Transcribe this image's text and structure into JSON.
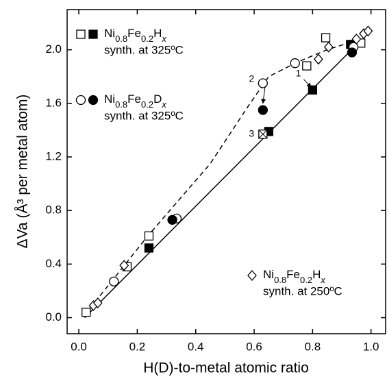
{
  "chart_data": {
    "type": "scatter",
    "x_label": "H(D)-to-metal atomic ratio",
    "y_label": "ΔVa (Å³ per metal atom)",
    "xlim": [
      -0.04,
      1.05
    ],
    "ylim": [
      -0.12,
      2.3
    ],
    "xticks": [
      {
        "value": 0,
        "label": "0.0"
      },
      {
        "value": 0.2,
        "label": "0.2"
      },
      {
        "value": 0.4,
        "label": "0.4"
      },
      {
        "value": 0.6,
        "label": "0.6"
      },
      {
        "value": 0.8,
        "label": "0.8"
      },
      {
        "value": 1,
        "label": "1.0"
      }
    ],
    "yticks": [
      {
        "value": 0,
        "label": "0.0"
      },
      {
        "value": 0.4,
        "label": "0.4"
      },
      {
        "value": 0.8,
        "label": "0.8"
      },
      {
        "value": 1.2,
        "label": "1.2"
      },
      {
        "value": 1.6,
        "label": "1.6"
      },
      {
        "value": 2,
        "label": "2.0"
      }
    ],
    "series": [
      {
        "name": "Ni0.8Fe0.2Hx",
        "note": "synth. at 325ºC",
        "marker": "square",
        "open": {
          "x": [
            0.025,
            0.165,
            0.24,
            0.78,
            0.845,
            0.965
          ],
          "y": [
            0.04,
            0.38,
            0.61,
            1.88,
            2.09,
            2.05
          ]
        },
        "filled": {
          "x": [
            0.24,
            0.65,
            0.8,
            0.93
          ],
          "y": [
            0.52,
            1.39,
            1.7,
            2.04
          ]
        },
        "crossed": {
          "x": [
            0.63
          ],
          "y": [
            1.37
          ]
        }
      },
      {
        "name": "Ni0.8Fe0.2Dx",
        "note": "synth. at 325ºC",
        "marker": "circle",
        "open": {
          "x": [
            0.12,
            0.335,
            0.63,
            0.74,
            0.94
          ],
          "y": [
            0.27,
            0.74,
            1.75,
            1.9,
            2.02
          ]
        },
        "filled": {
          "x": [
            0.32,
            0.63,
            0.935
          ],
          "y": [
            0.73,
            1.55,
            1.98
          ]
        }
      },
      {
        "name": "Ni0.8Fe0.2Hx",
        "note": "synth. at 250ºC",
        "marker": "diamond",
        "open": {
          "x": [
            0.05,
            0.065,
            0.155,
            0.82,
            0.855,
            0.95,
            0.975,
            0.99
          ],
          "y": [
            0.09,
            0.11,
            0.39,
            1.93,
            2.02,
            2.08,
            2.12,
            2.14
          ]
        }
      }
    ],
    "lines": [
      {
        "style": "solid",
        "x": [
          0.02,
          0.97
        ],
        "y": [
          0,
          2.08
        ]
      },
      {
        "style": "dashed",
        "x": [
          0.02,
          0.24,
          0.45,
          0.58,
          0.65,
          0.75,
          0.85,
          0.95
        ],
        "y": [
          0.02,
          0.62,
          1.15,
          1.58,
          1.8,
          1.91,
          2.0,
          2.07
        ]
      }
    ],
    "annotations": [
      {
        "text": "1",
        "x": 0.765,
        "y": 1.82,
        "arrow_to": [
          0.795,
          1.72
        ]
      },
      {
        "text": "2",
        "x": 0.605,
        "y": 1.78,
        "arrow_to": [
          0.63,
          1.6
        ]
      },
      {
        "text": "3",
        "x": 0.605,
        "y": 1.37
      }
    ]
  }
}
